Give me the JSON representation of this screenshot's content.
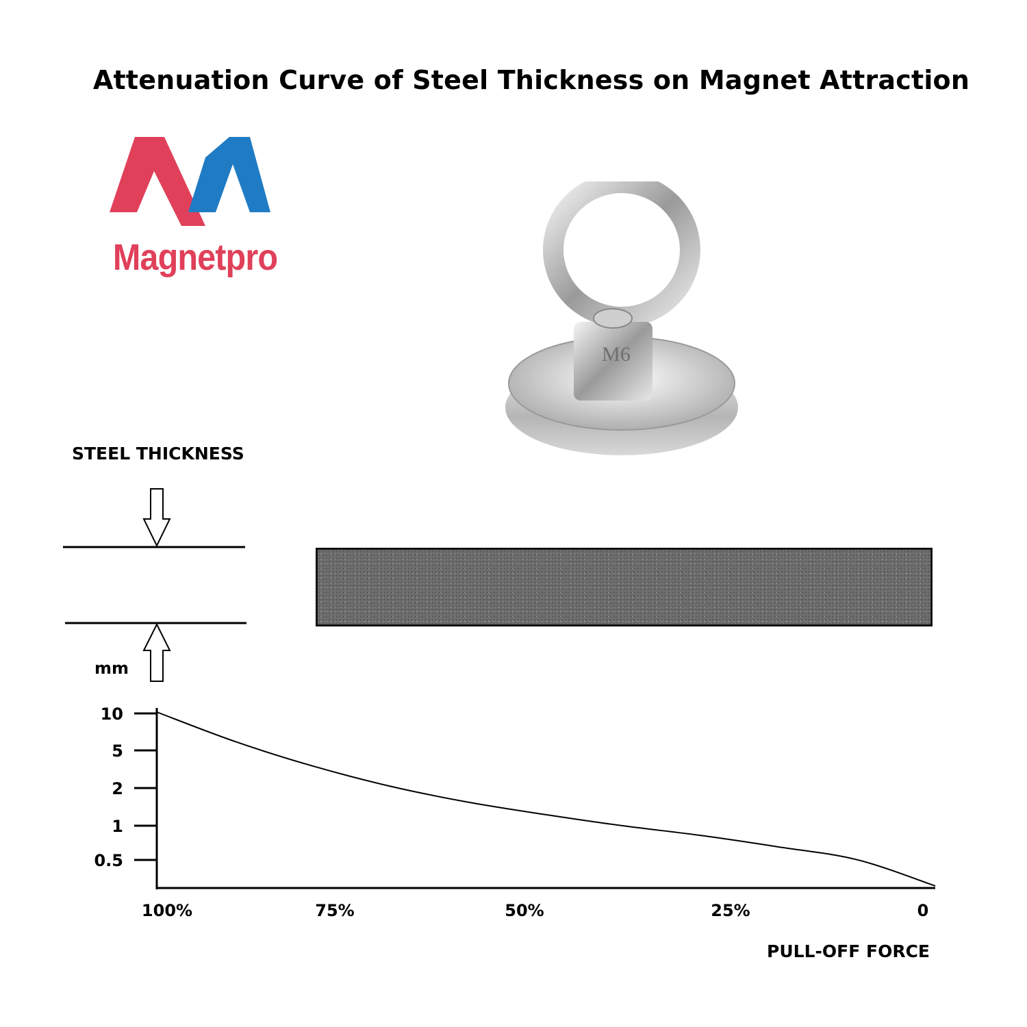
{
  "title": "Attenuation Curve of Steel Thickness on Magnet Attraction",
  "brand": {
    "name": "Magnetpro"
  },
  "product": {
    "thread_label": "M6"
  },
  "steel_thickness_label": "STEEL THICKNESS",
  "chart_data": {
    "type": "line",
    "xlabel": "PULL-OFF FORCE",
    "ylabel": "mm",
    "x_ticks": [
      "100%",
      "75%",
      "50%",
      "25%",
      "0"
    ],
    "y_ticks": [
      "10",
      "5",
      "2",
      "1",
      "0.5"
    ],
    "series": [
      {
        "x": [
          100,
          90,
          80,
          70,
          60,
          50,
          40,
          30,
          20,
          10,
          0
        ],
        "y": [
          10,
          4.6,
          2.4,
          1.4,
          0.92,
          0.66,
          0.49,
          0.38,
          0.28,
          0.2,
          0.1
        ]
      }
    ]
  },
  "colors": {
    "brand_red": "#e0405a",
    "brand_blue": "#1f7cc4"
  }
}
